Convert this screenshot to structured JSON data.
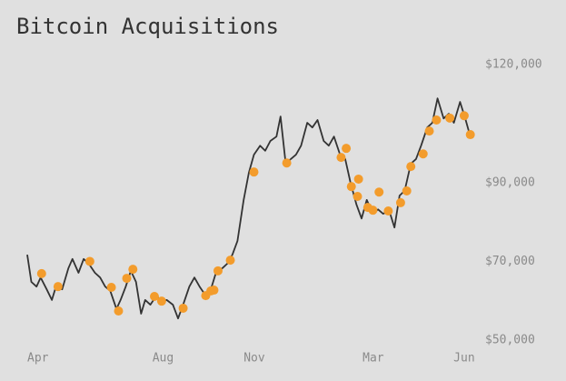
{
  "chart_data": {
    "type": "line",
    "title": "Bitcoin Acquisitions",
    "xlim": [
      0,
      432
    ],
    "xticks": [
      {
        "value": 0,
        "label": "Apr"
      },
      {
        "value": 122,
        "label": "Aug"
      },
      {
        "value": 211,
        "label": "Nov"
      },
      {
        "value": 327,
        "label": "Mar"
      },
      {
        "value": 426,
        "label": "Jun"
      }
    ],
    "ylim": [
      48000,
      122000
    ],
    "yticks": [
      {
        "value": 50000,
        "label": "$50,000"
      },
      {
        "value": 70000,
        "label": "$70,000"
      },
      {
        "value": 90000,
        "label": "$90,000"
      },
      {
        "value": 120000,
        "label": "$120,000"
      }
    ],
    "series": [
      {
        "type": "line",
        "color": "#333333",
        "x": [
          0,
          4,
          9,
          13,
          19,
          24,
          28,
          34,
          40,
          44,
          50,
          55,
          60,
          66,
          71,
          76,
          81,
          87,
          91,
          96,
          101,
          106,
          111,
          115,
          120,
          126,
          131,
          136,
          142,
          147,
          152,
          158,
          163,
          168,
          174,
          179,
          184,
          190,
          195,
          200,
          205,
          211,
          216,
          221,
          227,
          232,
          237,
          243,
          247,
          252,
          257,
          262,
          267,
          273,
          278,
          283,
          289,
          294,
          299,
          305,
          310,
          315,
          321,
          326,
          331,
          337,
          342,
          347,
          353,
          358,
          363,
          368,
          374,
          379,
          384,
          390,
          395,
          400,
          406,
          411,
          416,
          422,
          427,
          432
        ],
        "values": [
          71700,
          64800,
          63600,
          65900,
          62900,
          60200,
          63600,
          62900,
          68200,
          70600,
          67100,
          70600,
          69400,
          67100,
          65900,
          63600,
          62500,
          57900,
          60200,
          63600,
          67600,
          64800,
          56700,
          60200,
          59000,
          61300,
          59700,
          60200,
          59000,
          55500,
          59000,
          63600,
          65900,
          63600,
          61300,
          62900,
          67100,
          68200,
          69400,
          71700,
          75200,
          85600,
          92500,
          97100,
          99400,
          98100,
          100600,
          101700,
          106800,
          94800,
          96000,
          97100,
          99400,
          105200,
          104000,
          105900,
          100600,
          99400,
          101700,
          97100,
          96000,
          90200,
          84400,
          80900,
          85600,
          82100,
          83200,
          82100,
          82800,
          78600,
          86700,
          87900,
          94800,
          96000,
          99400,
          104000,
          105200,
          111400,
          106300,
          107500,
          105200,
          110500,
          106300,
          101700
        ]
      },
      {
        "type": "scatter",
        "color": "#f39c2c",
        "x": [
          14,
          30,
          61,
          82,
          89,
          97,
          103,
          124,
          131,
          152,
          174,
          179,
          182,
          186,
          198,
          221,
          253,
          306,
          311,
          316,
          323,
          322,
          332,
          337,
          343,
          352,
          364,
          370,
          374,
          386,
          392,
          399,
          412,
          426,
          432
        ],
        "values": [
          66900,
          63600,
          70000,
          63400,
          57400,
          65700,
          68000,
          61100,
          59900,
          58100,
          61300,
          62500,
          62700,
          67600,
          70300,
          92700,
          95000,
          96400,
          98700,
          89000,
          90900,
          86500,
          83700,
          83000,
          87600,
          82800,
          84900,
          87900,
          94100,
          97300,
          103100,
          105900,
          106400,
          107000,
          102200
        ]
      }
    ]
  }
}
